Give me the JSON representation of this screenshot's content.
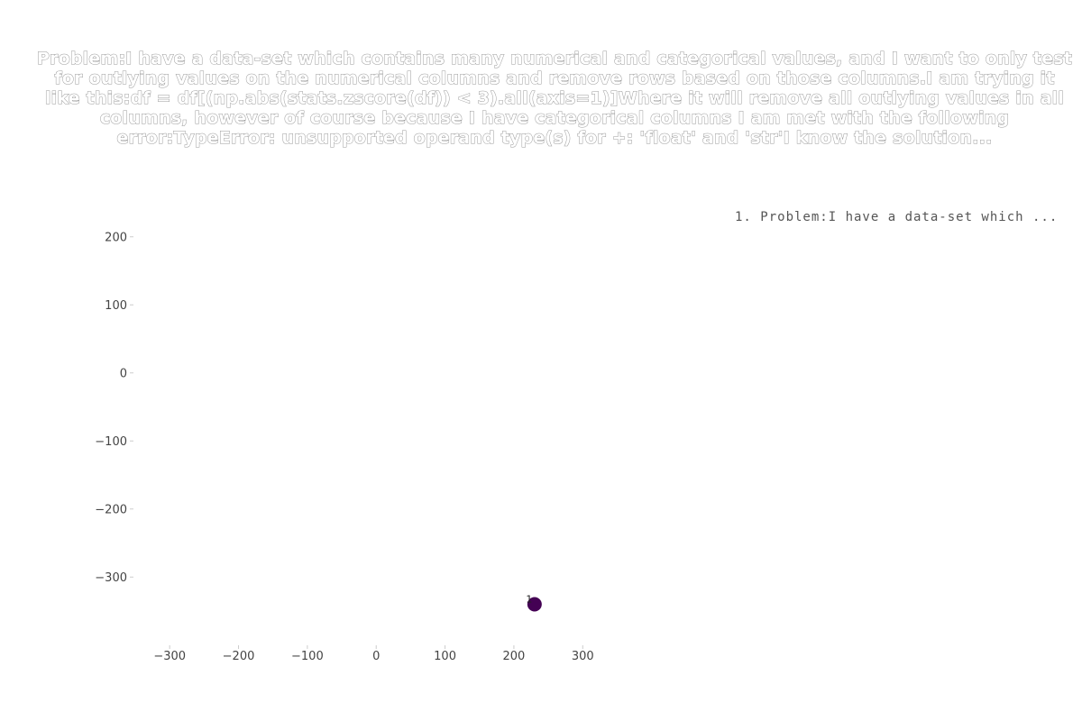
{
  "chart_data": {
    "type": "scatter",
    "title": "Problem:I have a data-set which contains many numerical and categorical values, and I want to only test for outlying values on the numerical columns and remove rows based on those columns.I am trying it like this:df = df[(np.abs(stats.zscore(df)) < 3).all(axis=1)]Where it will remove all outlying values in all columns, however of course because I have categorical columns I am met with the following error:TypeError: unsupported operand type(s) for +: 'float' and 'str'I know the solution...",
    "xlim": [
      -350,
      390
    ],
    "ylim": [
      -395,
      250
    ],
    "x_ticks": [
      "−300",
      "−200",
      "−100",
      "0",
      "100",
      "200",
      "300"
    ],
    "x_tick_values": [
      -300,
      -200,
      -100,
      0,
      100,
      200,
      300
    ],
    "y_ticks": [
      "200",
      "100",
      "0",
      "−100",
      "−200",
      "−300"
    ],
    "y_tick_values": [
      200,
      100,
      0,
      -100,
      -200,
      -300
    ],
    "grid": false,
    "legend_position": "top-right",
    "points": [
      {
        "x": 230,
        "y": -340,
        "label": "1",
        "color": "#440154"
      }
    ],
    "legend": [
      "1. Problem:I have a data-set which ..."
    ]
  }
}
